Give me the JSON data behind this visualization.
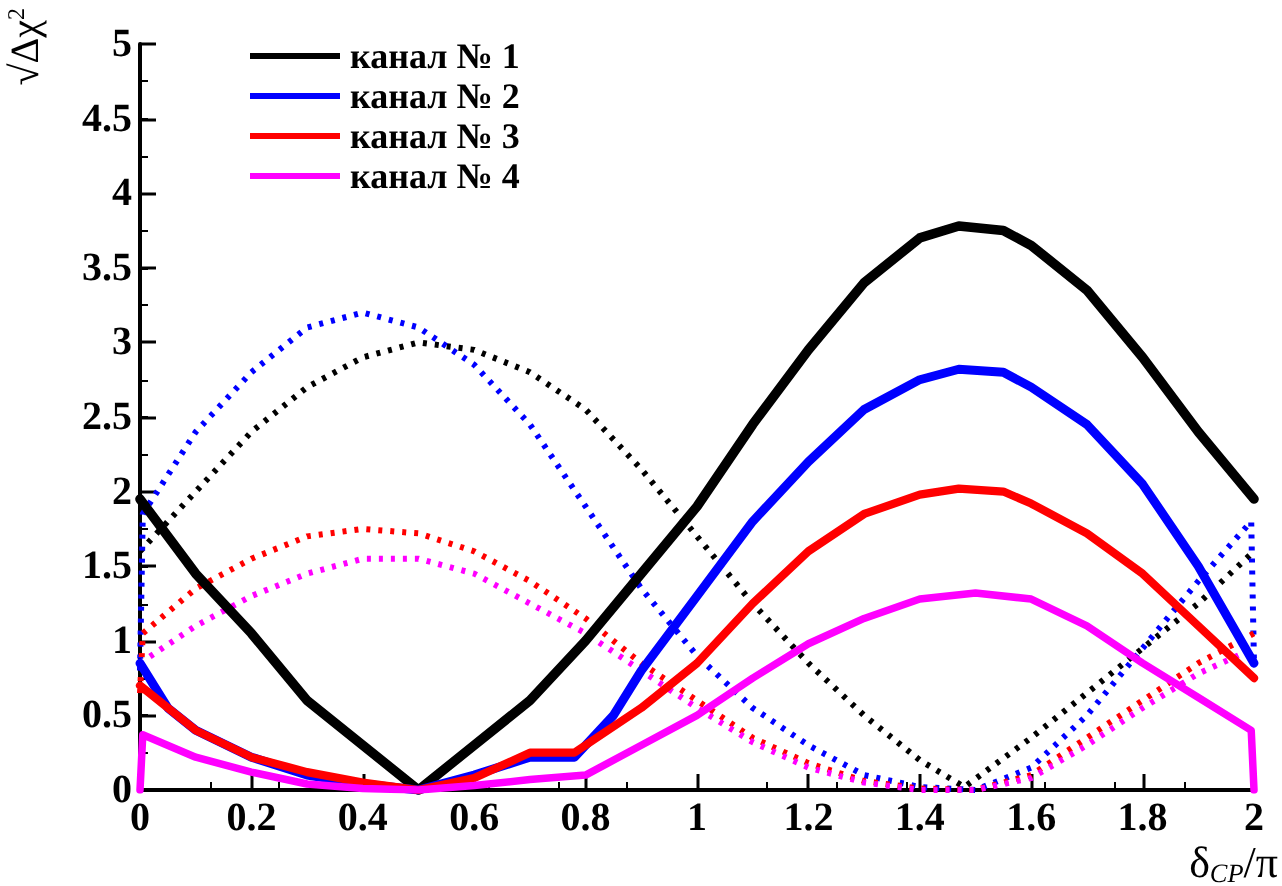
{
  "chart_data": {
    "type": "line",
    "xlabel": "δ$_{CP}$/π",
    "ylabel": "√Δχ$^{2}$",
    "xlim": [
      0,
      2
    ],
    "xticks": [
      0,
      0.2,
      0.4,
      0.6,
      0.8,
      1,
      1.2,
      1.4,
      1.6,
      1.8,
      2
    ],
    "ylim": [
      0,
      5
    ],
    "yticks": [
      0,
      0.5,
      1,
      1.5,
      2,
      2.5,
      3,
      3.5,
      4,
      4.5,
      5
    ],
    "grid": false,
    "legend": "top",
    "marker": "none",
    "series": [
      {
        "name": "канал № 1",
        "color": "#000000",
        "line_style": "solid",
        "x": [
          0,
          0.1,
          0.15,
          0.2,
          0.3,
          0.4,
          0.5,
          0.6,
          0.7,
          0.8,
          0.9,
          1,
          1.1,
          1.2,
          1.3,
          1.4,
          1.47,
          1.55,
          1.6,
          1.7,
          1.8,
          1.9,
          2
        ],
        "values": [
          1.95,
          1.45,
          1.25,
          1.05,
          0.6,
          0.3,
          0,
          0.3,
          0.6,
          1,
          1.45,
          1.9,
          2.45,
          2.95,
          3.4,
          3.7,
          3.78,
          3.75,
          3.65,
          3.35,
          2.9,
          2.4,
          1.95
        ]
      },
      {
        "name": "канал № 2",
        "color": "#0000ff",
        "line_style": "solid",
        "x": [
          0,
          0.05,
          0.1,
          0.2,
          0.3,
          0.4,
          0.5,
          0.6,
          0.7,
          0.78,
          0.85,
          0.9,
          1,
          1.1,
          1.2,
          1.3,
          1.4,
          1.47,
          1.55,
          1.6,
          1.7,
          1.8,
          1.9,
          2
        ],
        "values": [
          0.85,
          0.55,
          0.4,
          0.22,
          0.1,
          0.04,
          0,
          0.1,
          0.22,
          0.22,
          0.5,
          0.8,
          1.3,
          1.8,
          2.2,
          2.55,
          2.75,
          2.82,
          2.8,
          2.7,
          2.45,
          2.05,
          1.5,
          0.85
        ]
      },
      {
        "name": "канал № 3",
        "color": "#ff0000",
        "line_style": "solid",
        "x": [
          0,
          0.1,
          0.2,
          0.3,
          0.4,
          0.5,
          0.6,
          0.7,
          0.78,
          0.9,
          1,
          1.1,
          1.2,
          1.3,
          1.4,
          1.47,
          1.55,
          1.6,
          1.7,
          1.8,
          1.9,
          2
        ],
        "values": [
          0.7,
          0.4,
          0.22,
          0.12,
          0.05,
          0,
          0.08,
          0.25,
          0.25,
          0.55,
          0.85,
          1.25,
          1.6,
          1.85,
          1.98,
          2.02,
          2,
          1.92,
          1.72,
          1.45,
          1.1,
          0.75
        ]
      },
      {
        "name": "канал № 4",
        "color": "#ff00ff",
        "line_style": "solid",
        "x": [
          0,
          0.005,
          0.1,
          0.2,
          0.3,
          0.4,
          0.5,
          0.6,
          0.7,
          0.8,
          0.9,
          1,
          1.1,
          1.2,
          1.3,
          1.4,
          1.5,
          1.6,
          1.7,
          1.8,
          1.9,
          1.995,
          2
        ],
        "values": [
          0,
          0.37,
          0.22,
          0.12,
          0.04,
          0.01,
          0,
          0.03,
          0.07,
          0.1,
          0.3,
          0.5,
          0.75,
          0.98,
          1.15,
          1.28,
          1.32,
          1.28,
          1.1,
          0.85,
          0.62,
          0.4,
          0
        ]
      },
      {
        "color": "#000000",
        "line_style": "dotted",
        "x": [
          0,
          0.1,
          0.2,
          0.3,
          0.4,
          0.5,
          0.6,
          0.7,
          0.8,
          0.9,
          1,
          1.1,
          1.2,
          1.3,
          1.4,
          1.48,
          1.6,
          1.7,
          1.8,
          1.9,
          2
        ],
        "values": [
          1.6,
          2,
          2.4,
          2.7,
          2.9,
          3,
          2.95,
          2.8,
          2.55,
          2.15,
          1.7,
          1.25,
          0.85,
          0.5,
          0.2,
          0.02,
          0.35,
          0.65,
          0.95,
          1.25,
          1.6
        ]
      },
      {
        "color": "#0000ff",
        "line_style": "dotted",
        "x": [
          0,
          0.005,
          0.1,
          0.2,
          0.3,
          0.4,
          0.5,
          0.6,
          0.7,
          0.8,
          0.9,
          1,
          1.1,
          1.2,
          1.3,
          1.4,
          1.5,
          1.6,
          1.7,
          1.8,
          1.9,
          1.995,
          2
        ],
        "values": [
          0.8,
          1.85,
          2.4,
          2.8,
          3.1,
          3.2,
          3.1,
          2.85,
          2.45,
          1.9,
          1.35,
          0.9,
          0.55,
          0.3,
          0.1,
          0.02,
          0,
          0.15,
          0.5,
          0.95,
          1.4,
          1.8,
          0.85
        ]
      },
      {
        "color": "#ff0000",
        "line_style": "dotted",
        "x": [
          0,
          0.005,
          0.1,
          0.2,
          0.3,
          0.4,
          0.5,
          0.6,
          0.7,
          0.8,
          0.9,
          1,
          1.1,
          1.2,
          1.3,
          1.4,
          1.5,
          1.6,
          1.7,
          1.8,
          1.9,
          2
        ],
        "values": [
          0.65,
          1.05,
          1.35,
          1.55,
          1.7,
          1.75,
          1.72,
          1.6,
          1.4,
          1.15,
          0.85,
          0.6,
          0.35,
          0.18,
          0.06,
          0.01,
          0,
          0.1,
          0.35,
          0.6,
          0.85,
          1.05
        ]
      },
      {
        "color": "#ff00ff",
        "line_style": "dotted",
        "x": [
          0,
          0.1,
          0.2,
          0.3,
          0.4,
          0.5,
          0.6,
          0.7,
          0.8,
          0.9,
          1,
          1.1,
          1.2,
          1.3,
          1.4,
          1.5,
          1.6,
          1.7,
          1.8,
          1.9,
          2
        ],
        "values": [
          0.85,
          1.1,
          1.3,
          1.45,
          1.55,
          1.55,
          1.45,
          1.25,
          1.05,
          0.8,
          0.55,
          0.32,
          0.15,
          0.05,
          0,
          0,
          0.08,
          0.3,
          0.55,
          0.78,
          0.95
        ]
      }
    ]
  }
}
